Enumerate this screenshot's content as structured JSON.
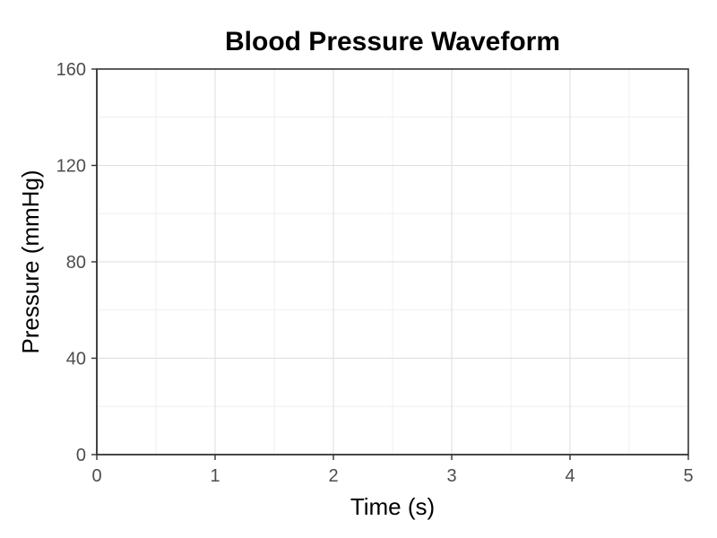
{
  "chart_data": {
    "type": "line",
    "title": "Blood Pressure Waveform",
    "xlabel": "Time (s)",
    "ylabel": "Pressure (mmHg)",
    "xlim": [
      0,
      5
    ],
    "ylim": [
      0,
      160
    ],
    "x_ticks": [
      0,
      1,
      2,
      3,
      4,
      5
    ],
    "y_ticks": [
      0,
      40,
      80,
      120,
      160
    ],
    "grid": true,
    "series": []
  }
}
